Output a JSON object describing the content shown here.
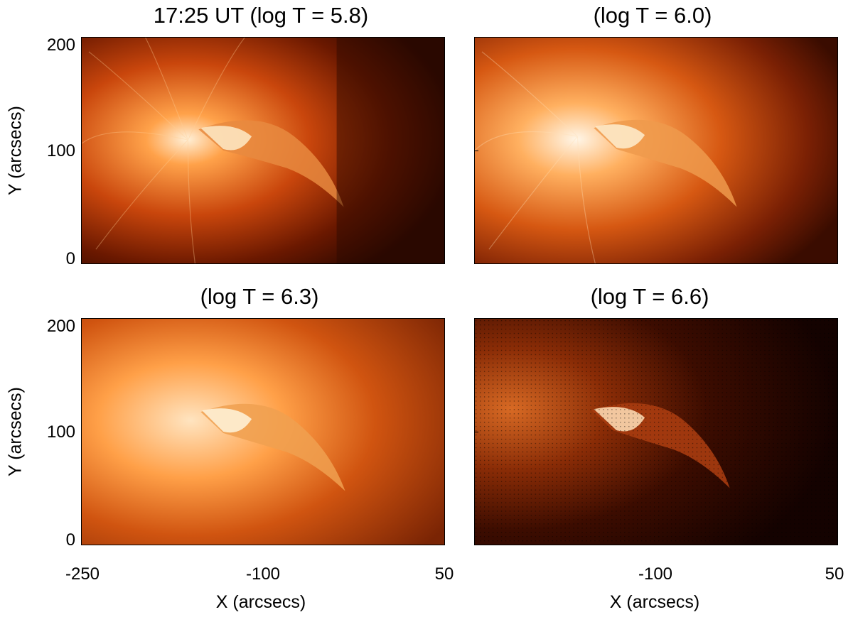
{
  "panels": [
    {
      "title": "17:25 UT (log T = 5.8)",
      "x_range": [
        -250,
        50
      ],
      "y_range": [
        0,
        200
      ]
    },
    {
      "title": "(log T = 6.0)",
      "x_range": [
        -250,
        50
      ],
      "y_range": [
        0,
        200
      ]
    },
    {
      "title": "(log T = 6.3)",
      "x_range": [
        -250,
        50
      ],
      "y_range": [
        0,
        200
      ]
    },
    {
      "title": "(log T = 6.6)",
      "x_range": [
        -250,
        50
      ],
      "y_range": [
        0,
        200
      ]
    }
  ],
  "axes": {
    "ylabel": "Y (arcsecs)",
    "xlabel": "X (arcsecs)",
    "yticks": [
      "200",
      "100",
      "0"
    ],
    "xticks_left": [
      "-250",
      "-100",
      "50"
    ],
    "xticks_right": [
      "-100",
      "50"
    ]
  },
  "colors": {
    "colormap": "sdoaia171-like",
    "dark": "#2a0800",
    "mid": "#c0400a",
    "bright": "#ffb060",
    "white": "#fff4e0"
  }
}
